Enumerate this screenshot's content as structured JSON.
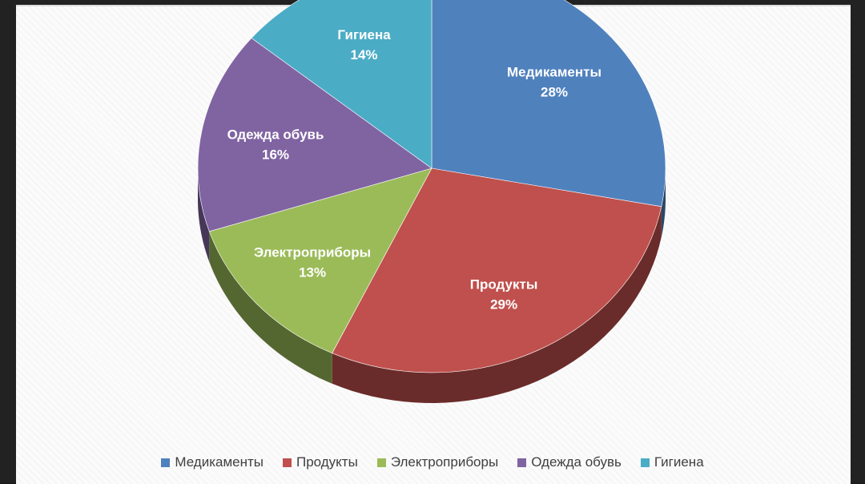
{
  "chart_data": {
    "type": "pie",
    "categories": [
      "Медикаменты",
      "Продукты",
      "Электроприборы",
      "Одежда обувь",
      "Гигиена"
    ],
    "values": [
      28,
      29,
      13,
      16,
      14
    ],
    "value_labels": [
      "28%",
      "29%",
      "13%",
      "16%",
      "14%"
    ],
    "colors": [
      "#4f81bd",
      "#c0504d",
      "#9bbb59",
      "#8064a2",
      "#4bacc6"
    ],
    "legend_position": "bottom",
    "style": "3d-pie"
  }
}
